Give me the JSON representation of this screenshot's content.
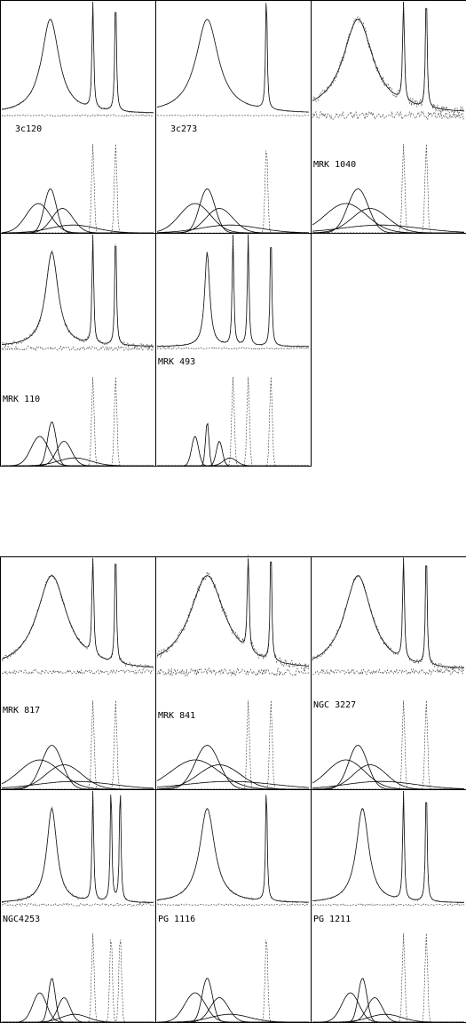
{
  "top_figure": {
    "panels": [
      {
        "label": "3c120"
      },
      {
        "label": "3c273"
      },
      {
        "label": "MRK 1040"
      },
      {
        "label": "MRK 110"
      },
      {
        "label": "MRK 493"
      }
    ]
  },
  "bottom_figure": {
    "panels": [
      {
        "label": "MRK 817"
      },
      {
        "label": "MRK 841"
      },
      {
        "label": "NGC 3227"
      },
      {
        "label": "NGC4253"
      },
      {
        "label": "PG 1116"
      },
      {
        "label": "PG 1211"
      }
    ]
  }
}
